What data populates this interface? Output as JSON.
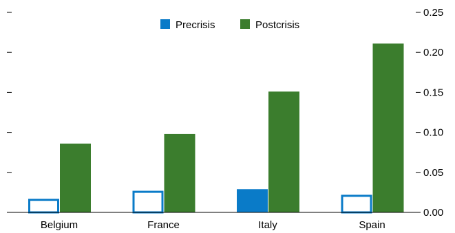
{
  "chart_data": {
    "type": "bar",
    "categories": [
      "Belgium",
      "France",
      "Italy",
      "Spain"
    ],
    "series": [
      {
        "name": "Precrisis",
        "values": [
          0.017,
          0.027,
          0.029,
          0.022
        ],
        "color": "#0a7bc8",
        "fill_pattern": [
          "outline",
          "outline",
          "solid",
          "outline"
        ]
      },
      {
        "name": "Postcrisis",
        "values": [
          0.086,
          0.098,
          0.151,
          0.211
        ],
        "color": "#3b7d2d"
      }
    ],
    "ylim": [
      0,
      0.25
    ],
    "y_ticks": [
      "0.00",
      "0.05",
      "0.10",
      "0.15",
      "0.20",
      "0.25"
    ],
    "y_tick_values": [
      0,
      0.05,
      0.1,
      0.15,
      0.2,
      0.25
    ],
    "y_axis_position": "right",
    "left_ticks_unlabeled": true,
    "grid": false,
    "legend_position": "top-center"
  }
}
